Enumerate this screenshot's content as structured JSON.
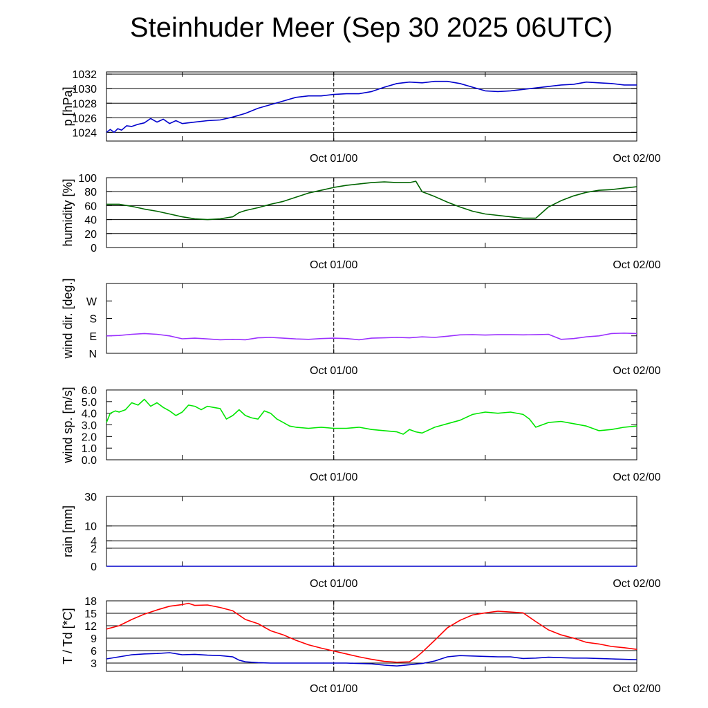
{
  "title": "Steinhuder Meer (Sep 30 2025 06UTC)",
  "chart_data": [
    {
      "id": "pressure",
      "type": "line",
      "ylabel": "p [hPa]",
      "ylim": [
        1022.8,
        1032.3
      ],
      "yticks": [
        1024,
        1026,
        1028,
        1030,
        1032
      ],
      "ytick_labels": [
        "1024",
        "1026",
        "1028",
        "1030",
        "1032"
      ],
      "gridlines": [
        1024,
        1026,
        1028,
        1030,
        1032
      ],
      "xlim": [
        0,
        42
      ],
      "xtick_labels": [
        {
          "x": 18,
          "label": "Oct 01/00"
        },
        {
          "x": 42,
          "label": "Oct 02/00"
        }
      ],
      "series": [
        {
          "name": "pressure",
          "color": "#0000cc",
          "x": [
            0,
            0.3,
            0.6,
            0.9,
            1.2,
            1.6,
            2.0,
            2.5,
            3.0,
            3.5,
            4.0,
            4.5,
            5.0,
            5.5,
            6.0,
            7.0,
            8.0,
            9.0,
            10.0,
            11.0,
            12.0,
            13.0,
            14.0,
            15.0,
            16.0,
            17.0,
            18.0,
            19.0,
            20.0,
            21.0,
            22.0,
            23.0,
            24.0,
            25.0,
            26.0,
            27.0,
            28.0,
            29.0,
            30.0,
            31.0,
            32.0,
            33.0,
            34.0,
            35.0,
            36.0,
            37.0,
            38.0,
            39.0,
            40.0,
            41.0,
            42.0
          ],
          "y": [
            1024.0,
            1024.4,
            1024.0,
            1024.5,
            1024.3,
            1024.9,
            1024.8,
            1025.1,
            1025.3,
            1025.9,
            1025.4,
            1025.8,
            1025.2,
            1025.6,
            1025.2,
            1025.4,
            1025.6,
            1025.7,
            1026.1,
            1026.6,
            1027.3,
            1027.8,
            1028.3,
            1028.8,
            1029.0,
            1029.0,
            1029.2,
            1029.3,
            1029.3,
            1029.6,
            1030.2,
            1030.7,
            1030.9,
            1030.8,
            1031.0,
            1031.0,
            1030.7,
            1030.2,
            1029.7,
            1029.6,
            1029.7,
            1029.9,
            1030.1,
            1030.3,
            1030.5,
            1030.6,
            1030.9,
            1030.8,
            1030.7,
            1030.5,
            1030.5
          ]
        }
      ]
    },
    {
      "id": "humidity",
      "type": "line",
      "ylabel": "humidity [%]",
      "ylim": [
        0,
        100
      ],
      "yticks": [
        0,
        20,
        40,
        60,
        80,
        100
      ],
      "ytick_labels": [
        "0",
        "20",
        "40",
        "60",
        "80",
        "100"
      ],
      "gridlines": [
        20,
        40,
        60,
        80
      ],
      "xlim": [
        0,
        42
      ],
      "xtick_labels": [
        {
          "x": 18,
          "label": "Oct 01/00"
        },
        {
          "x": 42,
          "label": "Oct 02/00"
        }
      ],
      "series": [
        {
          "name": "humidity",
          "color": "#006400",
          "x": [
            0,
            1,
            2,
            3,
            4,
            5,
            6,
            7,
            8,
            9,
            10,
            10.5,
            11,
            12,
            13,
            14,
            15,
            16,
            17,
            18,
            19,
            20,
            21,
            22,
            23,
            24,
            24.5,
            25,
            26,
            27,
            28,
            29,
            30,
            31,
            32,
            33,
            34,
            35,
            36,
            37,
            38,
            39,
            40,
            41,
            42
          ],
          "y": [
            62,
            62,
            59,
            55,
            52,
            48,
            44,
            41,
            40,
            41,
            44,
            50,
            53,
            57,
            62,
            66,
            72,
            78,
            82,
            86,
            89,
            91,
            93,
            94,
            93,
            93,
            95,
            80,
            73,
            65,
            58,
            52,
            48,
            46,
            44,
            42,
            42,
            58,
            67,
            74,
            79,
            82,
            83,
            85,
            87
          ]
        }
      ]
    },
    {
      "id": "wind-direction",
      "type": "line",
      "ylabel": "wind dir. [deg.]",
      "ylim": [
        0,
        360
      ],
      "yticks": [
        0,
        90,
        180,
        270
      ],
      "ytick_labels": [
        "N",
        "E",
        "S",
        "W"
      ],
      "gridlines": [],
      "xlim": [
        0,
        42
      ],
      "xtick_labels": [
        {
          "x": 18,
          "label": "Oct 01/00"
        },
        {
          "x": 42,
          "label": "Oct 02/00"
        }
      ],
      "series": [
        {
          "name": "wind direction",
          "color": "#9b30ff",
          "x": [
            0,
            1,
            2,
            3,
            4,
            5,
            6,
            7,
            8,
            9,
            10,
            11,
            12,
            13,
            14,
            15,
            16,
            17,
            18,
            19,
            20,
            21,
            22,
            23,
            24,
            25,
            26,
            27,
            28,
            29,
            30,
            31,
            32,
            33,
            34,
            35,
            36,
            37,
            38,
            39,
            40,
            41,
            42
          ],
          "y": [
            90,
            92,
            98,
            102,
            98,
            90,
            75,
            78,
            74,
            70,
            72,
            70,
            80,
            82,
            78,
            74,
            72,
            76,
            78,
            76,
            70,
            78,
            80,
            82,
            80,
            85,
            82,
            88,
            95,
            96,
            94,
            96,
            96,
            95,
            96,
            98,
            72,
            76,
            85,
            90,
            102,
            104,
            102
          ]
        }
      ]
    },
    {
      "id": "wind-speed",
      "type": "line",
      "ylabel": "wind sp. [m/s]",
      "ylim": [
        0,
        6
      ],
      "yticks": [
        0,
        1,
        2,
        3,
        4,
        5,
        6
      ],
      "ytick_labels": [
        "0.0",
        "1.0",
        "2.0",
        "3.0",
        "4.0",
        "5.0",
        "6.0"
      ],
      "gridlines": [],
      "xlim": [
        0,
        42
      ],
      "xtick_labels": [
        {
          "x": 18,
          "label": "Oct 01/00"
        },
        {
          "x": 42,
          "label": "Oct 02/00"
        }
      ],
      "series": [
        {
          "name": "wind speed",
          "color": "#00e600",
          "x": [
            0,
            0.3,
            0.7,
            1.0,
            1.5,
            2.0,
            2.5,
            3.0,
            3.5,
            4.0,
            4.5,
            5.0,
            5.5,
            6.0,
            6.5,
            7.0,
            7.5,
            8.0,
            8.5,
            9.0,
            9.5,
            10.0,
            10.5,
            11.0,
            11.5,
            12.0,
            12.5,
            13.0,
            13.5,
            14.0,
            14.5,
            15.0,
            16.0,
            17.0,
            18.0,
            19.0,
            20.0,
            21.0,
            22.0,
            23.0,
            23.5,
            24.0,
            24.5,
            25.0,
            26.0,
            27.0,
            28.0,
            29.0,
            30.0,
            31.0,
            32.0,
            33.0,
            33.5,
            34.0,
            35.0,
            36.0,
            37.0,
            38.0,
            39.0,
            40.0,
            41.0,
            42.0
          ],
          "y": [
            3.2,
            4.0,
            4.2,
            4.1,
            4.3,
            4.9,
            4.7,
            5.2,
            4.6,
            4.9,
            4.5,
            4.2,
            3.8,
            4.1,
            4.7,
            4.6,
            4.3,
            4.6,
            4.5,
            4.4,
            3.5,
            3.8,
            4.3,
            3.8,
            3.6,
            3.5,
            4.2,
            4.0,
            3.5,
            3.2,
            2.9,
            2.8,
            2.7,
            2.8,
            2.7,
            2.7,
            2.8,
            2.6,
            2.5,
            2.4,
            2.2,
            2.6,
            2.4,
            2.3,
            2.8,
            3.1,
            3.4,
            3.9,
            4.1,
            4.0,
            4.1,
            3.9,
            3.5,
            2.8,
            3.2,
            3.3,
            3.1,
            2.9,
            2.5,
            2.6,
            2.8,
            2.9
          ]
        }
      ]
    },
    {
      "id": "rain",
      "type": "line",
      "ylabel": "rain [mm]",
      "ylim": [
        0,
        30
      ],
      "yticks": [
        0,
        2,
        4,
        10,
        30
      ],
      "ytick_labels": [
        "0",
        "2",
        "4",
        "10",
        "30"
      ],
      "gridlines": [
        2,
        4,
        10,
        30
      ],
      "scale": "sqrt",
      "xlim": [
        0,
        42
      ],
      "xtick_labels": [
        {
          "x": 18,
          "label": "Oct 01/00"
        },
        {
          "x": 42,
          "label": "Oct 02/00"
        }
      ],
      "series": [
        {
          "name": "rain",
          "color": "#0000cc",
          "x": [
            0,
            42
          ],
          "y": [
            0,
            0
          ]
        }
      ]
    },
    {
      "id": "temperature",
      "type": "line",
      "ylabel": "T / Td [*C]",
      "ylim": [
        1,
        18
      ],
      "yticks": [
        3,
        6,
        9,
        12,
        15,
        18
      ],
      "ytick_labels": [
        "3",
        "6",
        "9",
        "12",
        "15",
        "18"
      ],
      "gridlines": [
        3,
        6,
        9,
        12,
        15,
        18
      ],
      "xlim": [
        0,
        42
      ],
      "xtick_labels": [
        {
          "x": 18,
          "label": "Oct 01/00"
        },
        {
          "x": 42,
          "label": "Oct 02/00"
        }
      ],
      "series": [
        {
          "name": "T",
          "color": "#ff0000",
          "x": [
            0,
            1,
            2,
            3,
            4,
            5,
            6,
            6.5,
            7,
            8,
            9,
            10,
            11,
            12,
            13,
            14,
            15,
            16,
            17,
            18,
            19,
            20,
            21,
            22,
            23,
            24,
            24.5,
            25,
            26,
            27,
            28,
            29,
            30,
            31,
            32,
            33,
            34,
            35,
            36,
            37,
            38,
            39,
            40,
            41,
            42
          ],
          "y": [
            11.2,
            12.0,
            13.5,
            14.8,
            15.8,
            16.7,
            17.1,
            17.4,
            16.9,
            17.0,
            16.4,
            15.6,
            13.5,
            12.5,
            10.8,
            9.8,
            8.5,
            7.4,
            6.6,
            5.9,
            5.2,
            4.5,
            3.9,
            3.4,
            3.2,
            3.3,
            4.3,
            5.6,
            8.5,
            11.5,
            13.3,
            14.6,
            15.1,
            15.5,
            15.3,
            15.1,
            13.0,
            11.0,
            9.8,
            9.0,
            8.0,
            7.6,
            7.0,
            6.7,
            6.3
          ]
        },
        {
          "name": "Td",
          "color": "#0000cc",
          "x": [
            0,
            1,
            2,
            3,
            4,
            5,
            6,
            7,
            8,
            9,
            10,
            10.5,
            11,
            12,
            13,
            14,
            15,
            16,
            17,
            18,
            19,
            20,
            21,
            22,
            23,
            24,
            25,
            26,
            27,
            28,
            29,
            30,
            31,
            32,
            33,
            34,
            35,
            36,
            37,
            38,
            39,
            40,
            41,
            42
          ],
          "y": [
            4.0,
            4.5,
            5.0,
            5.2,
            5.3,
            5.5,
            5.0,
            5.1,
            4.9,
            4.8,
            4.5,
            3.7,
            3.3,
            3.1,
            3.0,
            3.0,
            3.0,
            3.0,
            3.0,
            3.0,
            3.0,
            2.9,
            2.8,
            2.5,
            2.3,
            2.6,
            2.9,
            3.5,
            4.5,
            4.8,
            4.7,
            4.6,
            4.5,
            4.5,
            4.1,
            4.2,
            4.4,
            4.3,
            4.2,
            4.2,
            4.1,
            4.0,
            3.9,
            3.8
          ]
        }
      ]
    }
  ]
}
